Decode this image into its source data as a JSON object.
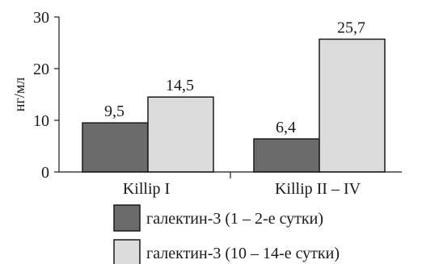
{
  "chart_data": {
    "type": "bar",
    "categories": [
      "Killip I",
      "Killip II – IV"
    ],
    "series": [
      {
        "name": "галектин-3 (1 – 2-е сутки)",
        "values": [
          9.5,
          6.4
        ],
        "labels": [
          "9,5",
          "6,4"
        ],
        "color": "#6b6b6b"
      },
      {
        "name": "галектин-3 (10 – 14-е сутки)",
        "values": [
          14.5,
          25.7
        ],
        "labels": [
          "14,5",
          "25,7"
        ],
        "color": "#dcdcdc"
      }
    ],
    "title": "",
    "xlabel": "",
    "ylabel": "нг/мл",
    "ylim": [
      0,
      30
    ],
    "yticks": [
      0,
      10,
      20,
      30
    ],
    "ytick_labels": [
      "0",
      "10",
      "20",
      "30"
    ],
    "grid": false,
    "legend_position": "bottom"
  }
}
